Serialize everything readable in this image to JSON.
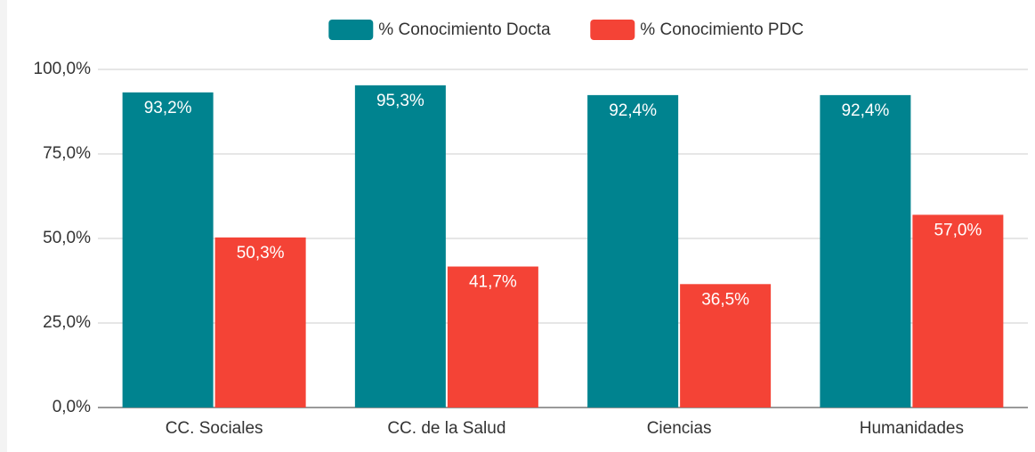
{
  "chart_data": {
    "type": "bar",
    "categories": [
      "CC. Sociales",
      "CC. de la Salud",
      "Ciencias",
      "Humanidades"
    ],
    "series": [
      {
        "name": "% Conocimiento Docta",
        "color": "#00838f",
        "values": [
          93.2,
          95.3,
          92.4,
          92.4
        ],
        "value_labels": [
          "93,2%",
          "95,3%",
          "92,4%",
          "92,4%"
        ]
      },
      {
        "name": "% Conocimiento PDC",
        "color": "#f44336",
        "values": [
          50.3,
          41.7,
          36.5,
          57.0
        ],
        "value_labels": [
          "50,3%",
          "41,7%",
          "36,5%",
          "57,0%"
        ]
      }
    ],
    "ylim": [
      0,
      100
    ],
    "yticks": [
      {
        "value": 0,
        "label": "0,0%"
      },
      {
        "value": 25,
        "label": "25,0%"
      },
      {
        "value": 50,
        "label": "50,0%"
      },
      {
        "value": 75,
        "label": "75,0%"
      },
      {
        "value": 100,
        "label": "100,0%"
      }
    ],
    "grid": true,
    "legend": "top"
  }
}
